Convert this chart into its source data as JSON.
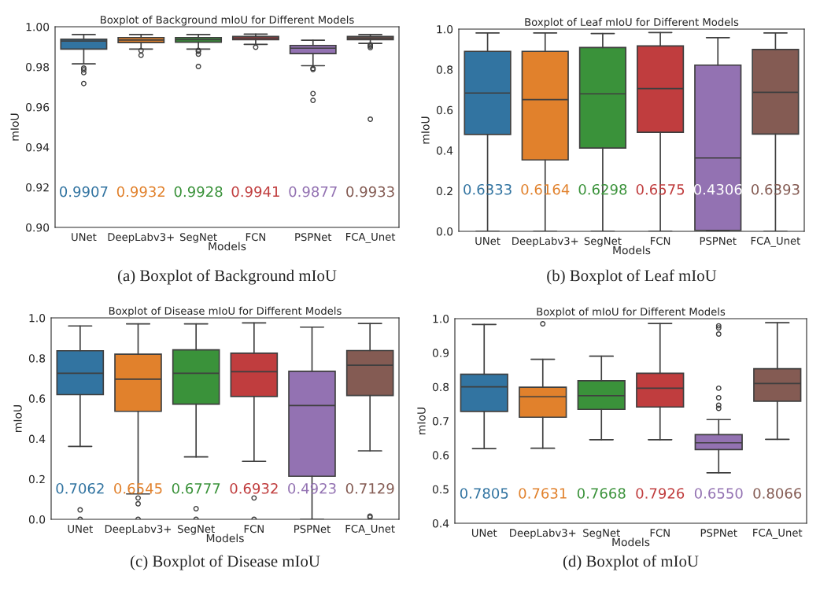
{
  "chart_data": [
    {
      "type": "box",
      "title": "Boxplot of Background mIoU for Different Models",
      "xlabel": "Models",
      "ylabel": "mIoU",
      "categories": [
        "UNet",
        "DeepLabv3+",
        "SegNet",
        "FCN",
        "PSPNet",
        "FCA_Unet"
      ],
      "colors": [
        "#3274a1",
        "#e1812c",
        "#3a923a",
        "#c03d3e",
        "#9372b2",
        "#845b53"
      ],
      "boxes": [
        {
          "low": 0.9815,
          "q1": 0.9889,
          "median": 0.9929,
          "q3": 0.9938,
          "high": 0.9961,
          "outliers": [
            0.9794,
            0.9785,
            0.9771,
            0.9717
          ]
        },
        {
          "low": 0.9889,
          "q1": 0.9921,
          "median": 0.9934,
          "q3": 0.9946,
          "high": 0.9961,
          "outliers": [
            0.9881,
            0.9858
          ]
        },
        {
          "low": 0.9889,
          "q1": 0.9923,
          "median": 0.9936,
          "q3": 0.9946,
          "high": 0.9961,
          "outliers": [
            0.9882,
            0.9877,
            0.9864,
            0.9802
          ]
        },
        {
          "low": 0.9912,
          "q1": 0.9936,
          "median": 0.9944,
          "q3": 0.9952,
          "high": 0.9963,
          "outliers": [
            0.9898
          ]
        },
        {
          "low": 0.9806,
          "q1": 0.9866,
          "median": 0.9893,
          "q3": 0.9907,
          "high": 0.9933,
          "outliers": [
            0.9792,
            0.9787,
            0.9667,
            0.9633
          ]
        },
        {
          "low": 0.9917,
          "q1": 0.9936,
          "median": 0.9944,
          "q3": 0.9952,
          "high": 0.9961,
          "outliers": [
            0.991,
            0.9904,
            0.9896,
            0.9539
          ]
        }
      ],
      "ylim": [
        0.9,
        1.0
      ],
      "yticks": [
        {
          "value": 0.9,
          "label": "0.90"
        },
        {
          "value": 0.92,
          "label": "0.92"
        },
        {
          "value": 0.94,
          "label": "0.94"
        },
        {
          "value": 0.96,
          "label": "0.96"
        },
        {
          "value": 0.98,
          "label": "0.98"
        },
        {
          "value": 1.0,
          "label": "1.00"
        }
      ],
      "annotations": [
        "0.9907",
        "0.9932",
        "0.9928",
        "0.9941",
        "0.9877",
        "0.9933",
        "(a) Boxplot of Background mIoU"
      ]
    },
    {
      "type": "box",
      "title": "Boxplot of Leaf mIoU for Different Models",
      "xlabel": "Models",
      "ylabel": "mIoU",
      "categories": [
        "UNet",
        "DeepLabv3+",
        "SegNet",
        "FCN",
        "PSPNet",
        "FCA_Unet"
      ],
      "colors": [
        "#3274a1",
        "#e1812c",
        "#3a923a",
        "#c03d3e",
        "#9372b2",
        "#845b53"
      ],
      "boxes": [
        {
          "low": 0.0,
          "q1": 0.479,
          "median": 0.684,
          "q3": 0.89,
          "high": 0.981
        },
        {
          "low": 0.0,
          "q1": 0.353,
          "median": 0.651,
          "q3": 0.89,
          "high": 0.981
        },
        {
          "low": 0.0,
          "q1": 0.412,
          "median": 0.68,
          "q3": 0.909,
          "high": 0.978
        },
        {
          "low": 0.0,
          "q1": 0.49,
          "median": 0.706,
          "q3": 0.917,
          "high": 0.983
        },
        {
          "low": 0.0,
          "q1": 0.005,
          "median": 0.363,
          "q3": 0.822,
          "high": 0.958
        },
        {
          "low": 0.0,
          "q1": 0.481,
          "median": 0.687,
          "q3": 0.899,
          "high": 0.981
        }
      ],
      "ylim": [
        0.0,
        1.0
      ],
      "yticks": [
        {
          "value": 0.0,
          "label": "0.0"
        },
        {
          "value": 0.2,
          "label": "0.2"
        },
        {
          "value": 0.4,
          "label": "0.4"
        },
        {
          "value": 0.6,
          "label": "0.6"
        },
        {
          "value": 0.8,
          "label": "0.8"
        },
        {
          "value": 1.0,
          "label": "1.0"
        }
      ],
      "annotations": [
        "0.6333",
        "0.6164",
        "0.6298",
        "0.6575",
        "0.4306",
        "0.6393",
        "(b) Boxplot of Leaf mIoU"
      ]
    },
    {
      "type": "box",
      "title": "Boxplot of Disease mIoU for Different Models",
      "xlabel": "Models",
      "ylabel": "mIoU",
      "categories": [
        "UNet",
        "DeepLabv3+",
        "SegNet",
        "FCN",
        "PSPNet",
        "FCA_Unet"
      ],
      "colors": [
        "#3274a1",
        "#e1812c",
        "#3a923a",
        "#c03d3e",
        "#9372b2",
        "#845b53"
      ],
      "boxes": [
        {
          "low": 0.362,
          "q1": 0.619,
          "median": 0.725,
          "q3": 0.837,
          "high": 0.96,
          "outliers": [
            0.047,
            0.0
          ]
        },
        {
          "low": 0.126,
          "q1": 0.536,
          "median": 0.696,
          "q3": 0.82,
          "high": 0.97,
          "outliers": [
            0.106,
            0.077,
            0.0
          ]
        },
        {
          "low": 0.31,
          "q1": 0.572,
          "median": 0.725,
          "q3": 0.841,
          "high": 0.97,
          "outliers": [
            0.053,
            0.0
          ]
        },
        {
          "low": 0.288,
          "q1": 0.61,
          "median": 0.733,
          "q3": 0.825,
          "high": 0.975,
          "outliers": [
            0.106,
            0.0
          ]
        },
        {
          "low": 0.0,
          "q1": 0.214,
          "median": 0.565,
          "q3": 0.735,
          "high": 0.954
        },
        {
          "low": 0.34,
          "q1": 0.615,
          "median": 0.765,
          "q3": 0.838,
          "high": 0.972,
          "outliers": [
            0.016,
            0.01
          ]
        }
      ],
      "ylim": [
        0.0,
        1.0
      ],
      "yticks": [
        {
          "value": 0.0,
          "label": "0.0"
        },
        {
          "value": 0.2,
          "label": "0.2"
        },
        {
          "value": 0.4,
          "label": "0.4"
        },
        {
          "value": 0.6,
          "label": "0.6"
        },
        {
          "value": 0.8,
          "label": "0.8"
        },
        {
          "value": 1.0,
          "label": "1.0"
        }
      ],
      "annotations": [
        "0.7062",
        "0.6545",
        "0.6777",
        "0.6932",
        "0.4923",
        "0.7129",
        "(c) Boxplot of Disease mIoU"
      ]
    },
    {
      "type": "box",
      "title": "Boxplot of mIoU for Different Models",
      "xlabel": "Models",
      "ylabel": "mIoU",
      "categories": [
        "UNet",
        "DeepLabv3+",
        "SegNet",
        "FCN",
        "PSPNet",
        "FCA_Unet"
      ],
      "colors": [
        "#3274a1",
        "#e1812c",
        "#3a923a",
        "#c03d3e",
        "#9372b2",
        "#845b53"
      ],
      "boxes": [
        {
          "low": 0.619,
          "q1": 0.728,
          "median": 0.8,
          "q3": 0.837,
          "high": 0.983
        },
        {
          "low": 0.62,
          "q1": 0.711,
          "median": 0.771,
          "q3": 0.799,
          "high": 0.881,
          "outliers": [
            0.985
          ]
        },
        {
          "low": 0.645,
          "q1": 0.734,
          "median": 0.774,
          "q3": 0.818,
          "high": 0.89
        },
        {
          "low": 0.645,
          "q1": 0.741,
          "median": 0.796,
          "q3": 0.84,
          "high": 0.986
        },
        {
          "low": 0.548,
          "q1": 0.616,
          "median": 0.636,
          "q3": 0.66,
          "high": 0.704,
          "outliers": [
            0.979,
            0.973,
            0.955,
            0.796,
            0.768,
            0.746,
            0.737
          ]
        },
        {
          "low": 0.646,
          "q1": 0.758,
          "median": 0.81,
          "q3": 0.853,
          "high": 0.988
        }
      ],
      "ylim": [
        0.4,
        1.0
      ],
      "yticks": [
        {
          "value": 0.4,
          "label": "0.4"
        },
        {
          "value": 0.5,
          "label": "0.5"
        },
        {
          "value": 0.6,
          "label": "0.6"
        },
        {
          "value": 0.7,
          "label": "0.7"
        },
        {
          "value": 0.8,
          "label": "0.8"
        },
        {
          "value": 0.9,
          "label": "0.9"
        },
        {
          "value": 1.0,
          "label": "1.0"
        }
      ],
      "annotations": [
        "0.7805",
        "0.7631",
        "0.7668",
        "0.7926",
        "0.6550",
        "0.8066",
        "(d) Boxplot of mIoU"
      ]
    }
  ]
}
